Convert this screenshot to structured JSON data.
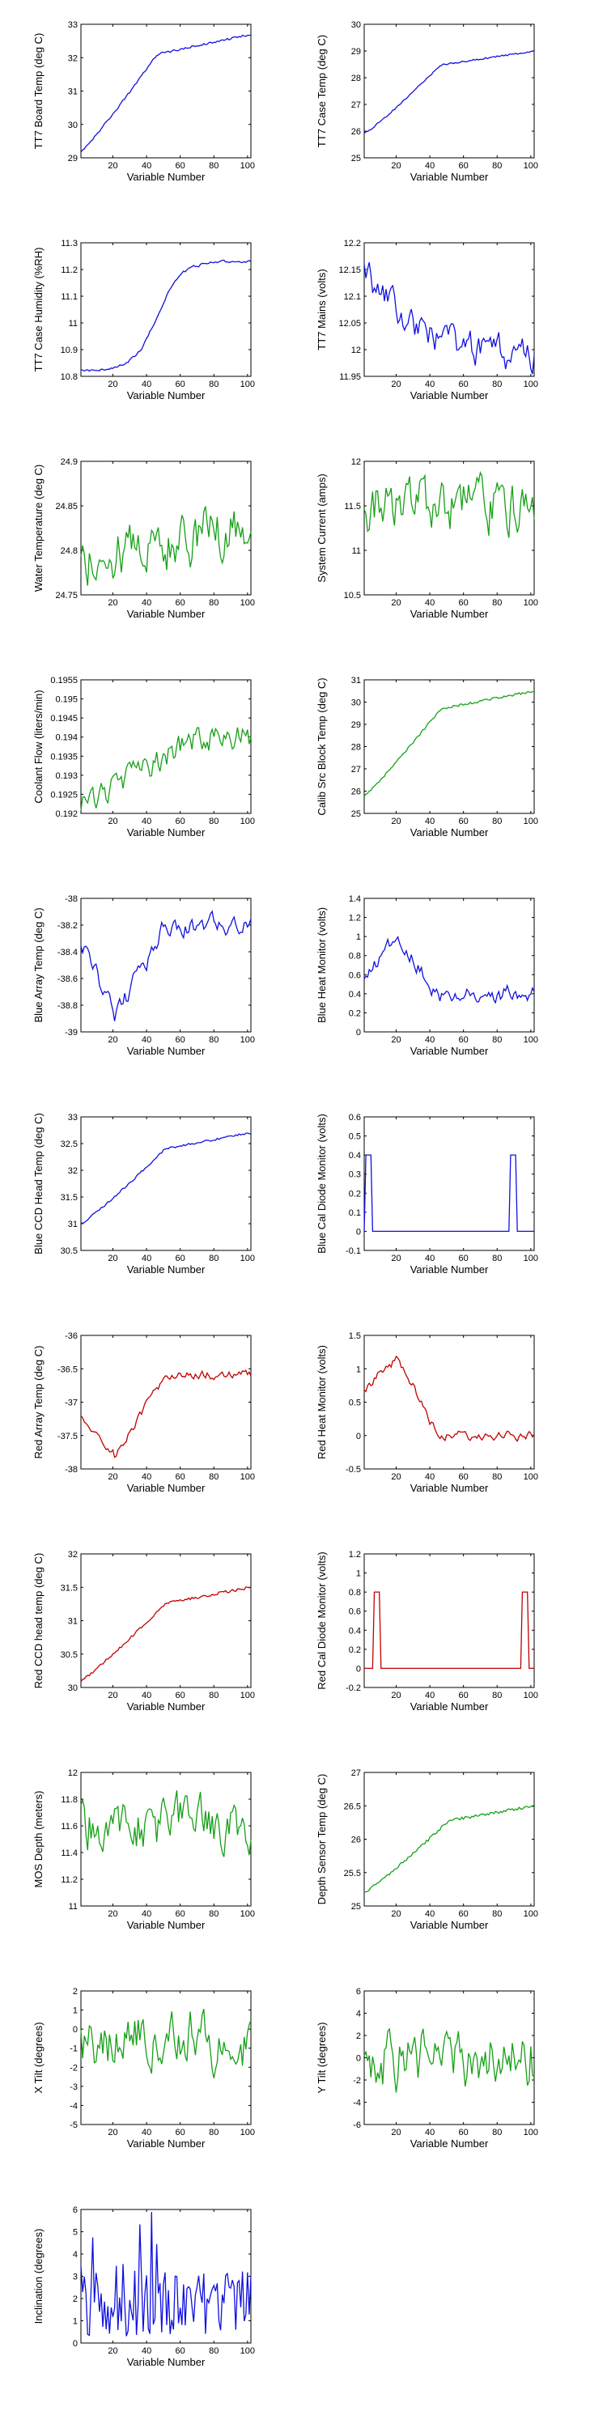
{
  "panel_colors": {
    "blue": "#1010e0",
    "green": "#16a016",
    "red": "#c00000"
  },
  "chart_data": [
    {
      "type": "line",
      "ylabel": "TT7 Board Temp (deg C)",
      "xlabel": "Variable Number",
      "color": "#1010e0",
      "xlim": [
        1,
        102
      ],
      "ylim": [
        29,
        33
      ],
      "xticks": [
        20,
        40,
        60,
        80,
        100
      ],
      "yticks": [
        29,
        30,
        31,
        32,
        33
      ],
      "shape": "step_up_curve",
      "start": 29.2,
      "end": 32.7,
      "knee": 0.45,
      "noise": 0.03
    },
    {
      "type": "line",
      "ylabel": "TT7 Case Temp (deg C)",
      "xlabel": "Variable Number",
      "color": "#1010e0",
      "xlim": [
        1,
        102
      ],
      "ylim": [
        25,
        30
      ],
      "xticks": [
        20,
        40,
        60,
        80,
        100
      ],
      "yticks": [
        25,
        26,
        27,
        28,
        29,
        30
      ],
      "shape": "step_up_curve",
      "start": 25.9,
      "end": 29.0,
      "knee": 0.45,
      "noise": 0.03
    },
    {
      "type": "line",
      "ylabel": "TT7 Case Humidity (%RH)",
      "xlabel": "Variable Number",
      "color": "#1010e0",
      "xlim": [
        1,
        102
      ],
      "ylim": [
        10.8,
        11.3
      ],
      "xticks": [
        20,
        40,
        60,
        80,
        100
      ],
      "yticks": [
        10.8,
        10.9,
        11,
        11.1,
        11.2,
        11.3
      ],
      "shape": "sigmoid",
      "start": 10.82,
      "end": 11.23,
      "knee": 0.45,
      "noise": 0.005
    },
    {
      "type": "line",
      "ylabel": "TT7 Mains  (volts)",
      "xlabel": "Variable Number",
      "color": "#1010e0",
      "xlim": [
        1,
        102
      ],
      "ylim": [
        11.95,
        12.2
      ],
      "xticks": [
        20,
        40,
        60,
        80,
        100
      ],
      "yticks": [
        11.95,
        12,
        12.05,
        12.1,
        12.15,
        12.2
      ],
      "shape": "decay_noise",
      "start": 12.15,
      "end": 11.98,
      "knee": 0.4,
      "noise": 0.025
    },
    {
      "type": "line",
      "ylabel": "Water Temperature (deg C)",
      "xlabel": "Variable Number",
      "color": "#16a016",
      "xlim": [
        1,
        102
      ],
      "ylim": [
        24.75,
        24.9
      ],
      "xticks": [
        20,
        40,
        60,
        80,
        100
      ],
      "yticks": [
        24.75,
        24.8,
        24.85,
        24.9
      ],
      "shape": "noise",
      "start": 24.79,
      "end": 24.83,
      "knee": 0.5,
      "noise": 0.025
    },
    {
      "type": "line",
      "ylabel": "System Current (amps)",
      "xlabel": "Variable Number",
      "color": "#16a016",
      "xlim": [
        1,
        102
      ],
      "ylim": [
        10.5,
        12
      ],
      "xticks": [
        20,
        40,
        60,
        80,
        100
      ],
      "yticks": [
        10.5,
        11,
        11.5,
        12
      ],
      "shape": "noise",
      "start": 11.5,
      "end": 11.5,
      "knee": 0.5,
      "noise": 0.25
    },
    {
      "type": "line",
      "ylabel": "Coolant Flow (liters/min)",
      "xlabel": "Variable Number",
      "color": "#16a016",
      "xlim": [
        1,
        102
      ],
      "ylim": [
        0.192,
        0.1955
      ],
      "xticks": [
        20,
        40,
        60,
        80,
        100
      ],
      "yticks": [
        0.192,
        0.1925,
        0.193,
        0.1935,
        0.194,
        0.1945,
        0.195,
        0.1955
      ],
      "shape": "rise_noise",
      "start": 0.1922,
      "end": 0.194,
      "knee": 0.4,
      "noise": 0.0003
    },
    {
      "type": "line",
      "ylabel": "Calib Src Block Temp (deg C)",
      "xlabel": "Variable Number",
      "color": "#16a016",
      "xlim": [
        1,
        102
      ],
      "ylim": [
        25,
        31
      ],
      "xticks": [
        20,
        40,
        60,
        80,
        100
      ],
      "yticks": [
        25,
        26,
        27,
        28,
        29,
        30,
        31
      ],
      "shape": "step_up_curve",
      "start": 25.8,
      "end": 30.5,
      "knee": 0.45,
      "noise": 0.05
    },
    {
      "type": "line",
      "ylabel": "Blue Array Temp (deg C)",
      "xlabel": "Variable Number",
      "color": "#1010e0",
      "xlim": [
        1,
        102
      ],
      "ylim": [
        -39,
        -38
      ],
      "xticks": [
        20,
        40,
        60,
        80,
        100
      ],
      "yticks": [
        -39,
        -38.8,
        -38.6,
        -38.4,
        -38.2,
        -38
      ],
      "shape": "dip_rise",
      "start": -38.3,
      "end": -38.2,
      "knee": 0.2,
      "noise": 0.06
    },
    {
      "type": "line",
      "ylabel": "Blue Heat Monitor (volts)",
      "xlabel": "Variable Number",
      "color": "#1010e0",
      "xlim": [
        1,
        102
      ],
      "ylim": [
        0,
        1.4
      ],
      "xticks": [
        20,
        40,
        60,
        80,
        100
      ],
      "yticks": [
        0,
        0.2,
        0.4,
        0.6,
        0.8,
        1,
        1.2,
        1.4
      ],
      "shape": "hump_drop",
      "start": 0.5,
      "end": 0.4,
      "knee": 0.45,
      "noise": 0.07
    },
    {
      "type": "line",
      "ylabel": "Blue CCD Head Temp (deg C)",
      "xlabel": "Variable Number",
      "color": "#1010e0",
      "xlim": [
        1,
        102
      ],
      "ylim": [
        30.5,
        33
      ],
      "xticks": [
        20,
        40,
        60,
        80,
        100
      ],
      "yticks": [
        30.5,
        31,
        31.5,
        32,
        32.5,
        33
      ],
      "shape": "step_up_curve",
      "start": 31.0,
      "end": 32.7,
      "knee": 0.5,
      "noise": 0.02
    },
    {
      "type": "line",
      "ylabel": "Blue Cal Diode Monitor (volts)",
      "xlabel": "Variable Number",
      "color": "#1010e0",
      "xlim": [
        1,
        102
      ],
      "ylim": [
        -0.1,
        0.6
      ],
      "xticks": [
        20,
        40,
        60,
        80,
        100
      ],
      "yticks": [
        -0.1,
        0,
        0.1,
        0.2,
        0.3,
        0.4,
        0.5,
        0.6
      ],
      "shape": "pulses",
      "pulses": [
        [
          2,
          5
        ],
        [
          88,
          91
        ]
      ],
      "pulse_value": 0.4,
      "base": 0.0
    },
    {
      "type": "line",
      "ylabel": "Red Array Temp (deg C)",
      "xlabel": "Variable Number",
      "color": "#c00000",
      "xlim": [
        1,
        102
      ],
      "ylim": [
        -38,
        -36
      ],
      "xticks": [
        20,
        40,
        60,
        80,
        100
      ],
      "yticks": [
        -38,
        -37.5,
        -37,
        -36.5,
        -36
      ],
      "shape": "dip_rise",
      "start": -37.2,
      "end": -36.6,
      "knee": 0.2,
      "noise": 0.06
    },
    {
      "type": "line",
      "ylabel": "Red Heat Monitor (volts)",
      "xlabel": "Variable Number",
      "color": "#c00000",
      "xlim": [
        1,
        102
      ],
      "ylim": [
        -0.5,
        1.5
      ],
      "xticks": [
        20,
        40,
        60,
        80,
        100
      ],
      "yticks": [
        -0.5,
        0,
        0.5,
        1,
        1.5
      ],
      "shape": "hump_drop",
      "start": 0.7,
      "end": 0.0,
      "knee": 0.45,
      "noise": 0.06
    },
    {
      "type": "line",
      "ylabel": "Red CCD head temp (deg C)",
      "xlabel": "Variable Number",
      "color": "#c00000",
      "xlim": [
        1,
        102
      ],
      "ylim": [
        30,
        32
      ],
      "xticks": [
        20,
        40,
        60,
        80,
        100
      ],
      "yticks": [
        30,
        30.5,
        31,
        31.5,
        32
      ],
      "shape": "step_up_curve",
      "start": 30.1,
      "end": 31.5,
      "knee": 0.5,
      "noise": 0.02
    },
    {
      "type": "line",
      "ylabel": "Red Cal Diode Monitor (volts)",
      "xlabel": "Variable Number",
      "color": "#c00000",
      "xlim": [
        1,
        102
      ],
      "ylim": [
        -0.2,
        1.2
      ],
      "xticks": [
        20,
        40,
        60,
        80,
        100
      ],
      "yticks": [
        -0.2,
        0,
        0.2,
        0.4,
        0.6,
        0.8,
        1,
        1.2
      ],
      "shape": "pulses",
      "pulses": [
        [
          7,
          10
        ],
        [
          95,
          98
        ]
      ],
      "pulse_value": 0.8,
      "base": 0.0
    },
    {
      "type": "line",
      "ylabel": "MOS Depth  (meters)",
      "xlabel": "Variable Number",
      "color": "#16a016",
      "xlim": [
        1,
        102
      ],
      "ylim": [
        11,
        12
      ],
      "xticks": [
        20,
        40,
        60,
        80,
        100
      ],
      "yticks": [
        11,
        11.2,
        11.4,
        11.6,
        11.8,
        12
      ],
      "shape": "noise",
      "start": 11.6,
      "end": 11.6,
      "knee": 0.5,
      "noise": 0.17
    },
    {
      "type": "line",
      "ylabel": "Depth Sensor Temp (deg C)",
      "xlabel": "Variable Number",
      "color": "#16a016",
      "xlim": [
        1,
        102
      ],
      "ylim": [
        25,
        27
      ],
      "xticks": [
        20,
        40,
        60,
        80,
        100
      ],
      "yticks": [
        25,
        25.5,
        26,
        26.5,
        27
      ],
      "shape": "step_up_curve",
      "start": 25.2,
      "end": 26.5,
      "knee": 0.5,
      "noise": 0.02
    },
    {
      "type": "line",
      "ylabel": "X Tilt  (degrees)",
      "xlabel": "Variable Number",
      "color": "#16a016",
      "xlim": [
        1,
        102
      ],
      "ylim": [
        -5,
        2
      ],
      "xticks": [
        20,
        40,
        60,
        80,
        100
      ],
      "yticks": [
        -5,
        -4,
        -3,
        -2,
        -1,
        0,
        1,
        2
      ],
      "shape": "noise",
      "start": -0.5,
      "end": -0.5,
      "knee": 0.5,
      "noise": 1.3
    },
    {
      "type": "line",
      "ylabel": "Y Tilt  (degrees)",
      "xlabel": "Variable Number",
      "color": "#16a016",
      "xlim": [
        1,
        102
      ],
      "ylim": [
        -6,
        6
      ],
      "xticks": [
        20,
        40,
        60,
        80,
        100
      ],
      "yticks": [
        -6,
        -4,
        -2,
        0,
        2,
        4,
        6
      ],
      "shape": "noise",
      "start": 0,
      "end": 0,
      "knee": 0.5,
      "noise": 2.2
    },
    {
      "type": "line",
      "ylabel": "Inclination  (degrees)",
      "xlabel": "Variable Number",
      "color": "#1010e0",
      "xlim": [
        1,
        102
      ],
      "ylim": [
        0,
        6
      ],
      "xticks": [
        20,
        40,
        60,
        80,
        100
      ],
      "yticks": [
        0,
        1,
        2,
        3,
        4,
        5,
        6
      ],
      "shape": "spiky_pos",
      "start": 1.8,
      "end": 1.8,
      "knee": 0.5,
      "noise": 1.5
    }
  ]
}
